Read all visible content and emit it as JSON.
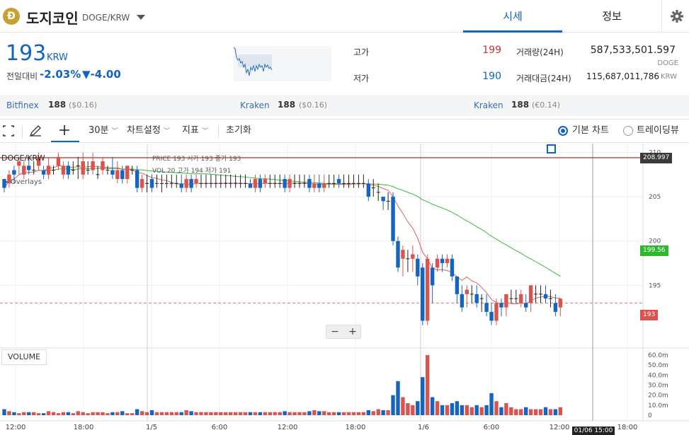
{
  "header": {
    "coin_logo_letter": "Ð",
    "coin_name": "도지코인",
    "pair": "DOGE/KRW",
    "tabs": [
      {
        "label": "시세"
      },
      {
        "label": "정보"
      }
    ]
  },
  "price": {
    "current": "193",
    "unit": "KRW",
    "change_label": "전일대비",
    "change_rate": "-2.03%",
    "change_amount": "▼-4.00"
  },
  "stats": {
    "high_label": "고가",
    "high": "199",
    "low_label": "저가",
    "low": "190",
    "volume_label": "거래량(24H)",
    "volume": "587,533,501.597",
    "volume_unit": "DOGE",
    "amount_label": "거래대금(24H)",
    "amount": "115,687,011,786",
    "amount_unit": "KRW"
  },
  "exchanges": [
    {
      "name": "Bitfinex",
      "price": "188",
      "conv": "($0.16)"
    },
    {
      "name": "Kraken",
      "price": "188",
      "conv": "($0.16)"
    },
    {
      "name": "Kraken",
      "price": "188",
      "conv": "(€0.14)"
    }
  ],
  "toolbar": {
    "interval": "30분",
    "chart_settings": "차트설정",
    "indicators": "지표",
    "reset": "초기화",
    "basic_chart": "기본 차트",
    "trading_view": "트레이딩뷰"
  },
  "chart_labels": {
    "symbol": "DOGE/KRW",
    "ohlc_row1": "PRICE  193     시가  193     종가  193",
    "ohlc_row2": "VOL    20     고가  194     저가  191",
    "overlays": "Overlays",
    "volume_title": "VOLUME",
    "crosshair_time": "01/06 15:00",
    "tag_high": "208.997",
    "tag_ma": "199.56",
    "tag_last": "193",
    "zoom_out": "−",
    "zoom_in": "+"
  },
  "colors": {
    "up": "#d9534f",
    "down": "#1565c0",
    "ma_short": "#e06060",
    "ma_long": "#3cb83c",
    "accent": "#1261c4"
  },
  "chart_data": {
    "type": "candlestick",
    "price_axis_ticks": [
      "210",
      "205",
      "200",
      "195"
    ],
    "price_range": [
      188,
      211
    ],
    "volume_axis_ticks": [
      "60.0m",
      "50.0m",
      "40.0m",
      "30.0m",
      "20.0m",
      "10.0m",
      "0"
    ],
    "volume_range": [
      0,
      65
    ],
    "time_axis_ticks": [
      "12:00",
      "18:00",
      "1/5",
      "6:00",
      "12:00",
      "18:00",
      "1/6",
      "6:00",
      "12:00",
      "18:00"
    ],
    "candles": [
      [
        207,
        206,
        207,
        205.5,
        6
      ],
      [
        206.5,
        207.5,
        208,
        206,
        4
      ],
      [
        208,
        207.5,
        208.5,
        206.5,
        3
      ],
      [
        208.5,
        209,
        209.5,
        207.5,
        2
      ],
      [
        207.5,
        208.5,
        209,
        207,
        3
      ],
      [
        208.5,
        208,
        209.5,
        207.5,
        3
      ],
      [
        208,
        208,
        209,
        207.5,
        3
      ],
      [
        208.5,
        209.5,
        210,
        208,
        2
      ],
      [
        208,
        207.5,
        208.5,
        207,
        2
      ],
      [
        207.5,
        208.5,
        209.5,
        207,
        4
      ],
      [
        208,
        208,
        208.5,
        207.5,
        3
      ],
      [
        208.5,
        209.5,
        210,
        208,
        2
      ],
      [
        207.5,
        208.5,
        209,
        207,
        3
      ],
      [
        208.5,
        207.5,
        209,
        207,
        3
      ],
      [
        208,
        208,
        209,
        207.5,
        2
      ],
      [
        208.5,
        208.5,
        209.5,
        207,
        4
      ],
      [
        207.5,
        209,
        210,
        207,
        3
      ],
      [
        208,
        208,
        209,
        207.5,
        2
      ],
      [
        208,
        209,
        210,
        207.5,
        3
      ],
      [
        207.5,
        207.5,
        208.5,
        207,
        3
      ],
      [
        208,
        209,
        209.5,
        207.5,
        3
      ],
      [
        208,
        208,
        208.5,
        207.5,
        2
      ],
      [
        208,
        207.5,
        209.5,
        207,
        3
      ],
      [
        207,
        208,
        209,
        206.5,
        3
      ],
      [
        208,
        207,
        208.5,
        206.5,
        4
      ],
      [
        207,
        208.5,
        208.5,
        206.5,
        2
      ],
      [
        208,
        208,
        208.5,
        207.5,
        2
      ],
      [
        208,
        206,
        208.5,
        205.5,
        6
      ],
      [
        206,
        207,
        207.5,
        205.5,
        4
      ],
      [
        206.5,
        206.5,
        207.5,
        205.5,
        3
      ],
      [
        207,
        206,
        207.5,
        205.5,
        5
      ],
      [
        206.5,
        206.5,
        207.5,
        206,
        3
      ],
      [
        206.5,
        206.5,
        207.5,
        205.5,
        3
      ],
      [
        206.5,
        206.5,
        207.5,
        206,
        3
      ],
      [
        206.5,
        206.5,
        207.5,
        206,
        3
      ],
      [
        206.5,
        206.5,
        207.5,
        206,
        3
      ],
      [
        206.5,
        206,
        207.5,
        205.5,
        3
      ],
      [
        206,
        207,
        207.5,
        205.5,
        5
      ],
      [
        207,
        206,
        207.5,
        205.5,
        4
      ],
      [
        206.5,
        207,
        207.5,
        206,
        3
      ],
      [
        206.5,
        206.5,
        207.5,
        206,
        3
      ],
      [
        206.5,
        206.5,
        207.5,
        206,
        3
      ],
      [
        206.5,
        206.5,
        207.5,
        206,
        3
      ],
      [
        206.5,
        206.5,
        207.5,
        206,
        3
      ],
      [
        206.5,
        206.5,
        207.5,
        206,
        3
      ],
      [
        206.5,
        206.5,
        207.5,
        206,
        3
      ],
      [
        206.5,
        206.5,
        207.5,
        206,
        3
      ],
      [
        206.5,
        206.5,
        207.5,
        206,
        3
      ],
      [
        206.5,
        206.5,
        207.5,
        206,
        3
      ],
      [
        206.5,
        206.5,
        207.5,
        206,
        3
      ],
      [
        206.5,
        206,
        207,
        206,
        3
      ],
      [
        206,
        207,
        207.5,
        205.5,
        3
      ],
      [
        207,
        206,
        207.5,
        205.5,
        3
      ],
      [
        206.5,
        207,
        207.5,
        206,
        3
      ],
      [
        206.5,
        206.5,
        207.5,
        206,
        3
      ],
      [
        206.5,
        206.5,
        207.5,
        206,
        3
      ],
      [
        206.5,
        206.5,
        207.5,
        206,
        3
      ],
      [
        207,
        206,
        207.5,
        205.5,
        4
      ],
      [
        206,
        207,
        207.5,
        205.5,
        3
      ],
      [
        206.5,
        206.5,
        207.5,
        206,
        3
      ],
      [
        206.5,
        206.5,
        207.5,
        206,
        3
      ],
      [
        206.5,
        206.5,
        207.5,
        206,
        3
      ],
      [
        207,
        206,
        207.5,
        205.5,
        4
      ],
      [
        206,
        206.5,
        207.5,
        205.5,
        5
      ],
      [
        206.5,
        206,
        207.5,
        205.5,
        4
      ],
      [
        206,
        206.5,
        207.5,
        205.5,
        4
      ],
      [
        206.5,
        206.5,
        207.5,
        206,
        3
      ],
      [
        206.5,
        206.5,
        207.5,
        206,
        3
      ],
      [
        207,
        206.5,
        207.5,
        206,
        3
      ],
      [
        206.5,
        206.5,
        207.5,
        206,
        3
      ],
      [
        206.5,
        206.5,
        207.5,
        206,
        3
      ],
      [
        206.5,
        206.5,
        207.5,
        206,
        3
      ],
      [
        206.5,
        206.5,
        207.5,
        206,
        3
      ],
      [
        206.5,
        206.5,
        207.5,
        206,
        3
      ],
      [
        206.5,
        205,
        207,
        204.5,
        5
      ],
      [
        206,
        206,
        207,
        205,
        4
      ],
      [
        205.5,
        205.5,
        206.5,
        204.5,
        6
      ],
      [
        205,
        204.5,
        205,
        203.5,
        5
      ],
      [
        204.5,
        204.5,
        205.5,
        203.5,
        5
      ],
      [
        205,
        200,
        205.5,
        199.5,
        20
      ],
      [
        200,
        197,
        200.5,
        196.5,
        34
      ],
      [
        198,
        199,
        199.5,
        196,
        18
      ],
      [
        198,
        198,
        199,
        196.5,
        12
      ],
      [
        198,
        198.5,
        199.5,
        196.5,
        10
      ],
      [
        198,
        196,
        198.5,
        195,
        14
      ],
      [
        197,
        191,
        197.5,
        190.5,
        38
      ],
      [
        191,
        198,
        198.5,
        190.5,
        60
      ],
      [
        197,
        195,
        197.5,
        193,
        18
      ],
      [
        197,
        198,
        198.5,
        196.5,
        14
      ],
      [
        198,
        197.5,
        198.5,
        196.5,
        10
      ],
      [
        197.5,
        198,
        198.5,
        197,
        10
      ],
      [
        198,
        196,
        198.5,
        195.5,
        12
      ],
      [
        196,
        194,
        196,
        193,
        14
      ],
      [
        194,
        192.5,
        195,
        192,
        10
      ],
      [
        194,
        194.5,
        195,
        192.5,
        10
      ],
      [
        194,
        194,
        195,
        193,
        8
      ],
      [
        194,
        193,
        195,
        192.5,
        10
      ],
      [
        193.5,
        193.5,
        194,
        192,
        8
      ],
      [
        193,
        192,
        194,
        191.5,
        10
      ],
      [
        192,
        191,
        193,
        190.5,
        22
      ],
      [
        191,
        193,
        193.5,
        190.5,
        14
      ],
      [
        193,
        192.5,
        193.5,
        191.5,
        8
      ],
      [
        192.5,
        194,
        194,
        191.5,
        12
      ],
      [
        193.5,
        193.5,
        194.5,
        193,
        8
      ],
      [
        193.5,
        193.5,
        194.5,
        193,
        6
      ],
      [
        193,
        194,
        194.5,
        192.5,
        6
      ],
      [
        193,
        192.5,
        194,
        192,
        8
      ],
      [
        193,
        195,
        195,
        192,
        6
      ],
      [
        194,
        194,
        195,
        193,
        6
      ],
      [
        194,
        194,
        195,
        193,
        6
      ],
      [
        194,
        193.5,
        195,
        193,
        8
      ],
      [
        193.5,
        193.5,
        194.5,
        192.5,
        6
      ],
      [
        193,
        192,
        194,
        191.5,
        6
      ],
      [
        192.5,
        193.5,
        193.5,
        191.5,
        8
      ]
    ]
  }
}
